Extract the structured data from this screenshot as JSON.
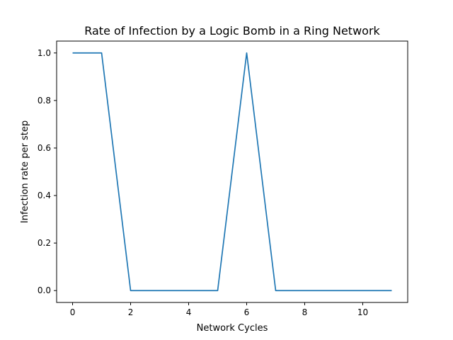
{
  "chart_data": {
    "type": "line",
    "title": "Rate of Infection by a Logic Bomb in a Ring Network",
    "xlabel": "Network Cycles",
    "ylabel": "Infection rate per step",
    "x": [
      0,
      1,
      2,
      3,
      4,
      5,
      6,
      7,
      8,
      9,
      10,
      11
    ],
    "series": [
      {
        "values": [
          1.0,
          1.0,
          0.0,
          0.0,
          0.0,
          0.0,
          1.0,
          0.0,
          0.0,
          0.0,
          0.0,
          0.0
        ],
        "color": "#1f77b4"
      }
    ],
    "xlim": [
      -0.55,
      11.55
    ],
    "ylim": [
      -0.05,
      1.05
    ],
    "xticks": [
      0,
      2,
      4,
      6,
      8,
      10
    ],
    "xtick_labels": [
      "0",
      "2",
      "4",
      "6",
      "8",
      "10"
    ],
    "yticks": [
      0.0,
      0.2,
      0.4,
      0.6,
      0.8,
      1.0
    ],
    "ytick_labels": [
      "0.0",
      "0.2",
      "0.4",
      "0.6",
      "0.8",
      "1.0"
    ],
    "grid": false,
    "legend": "none"
  }
}
